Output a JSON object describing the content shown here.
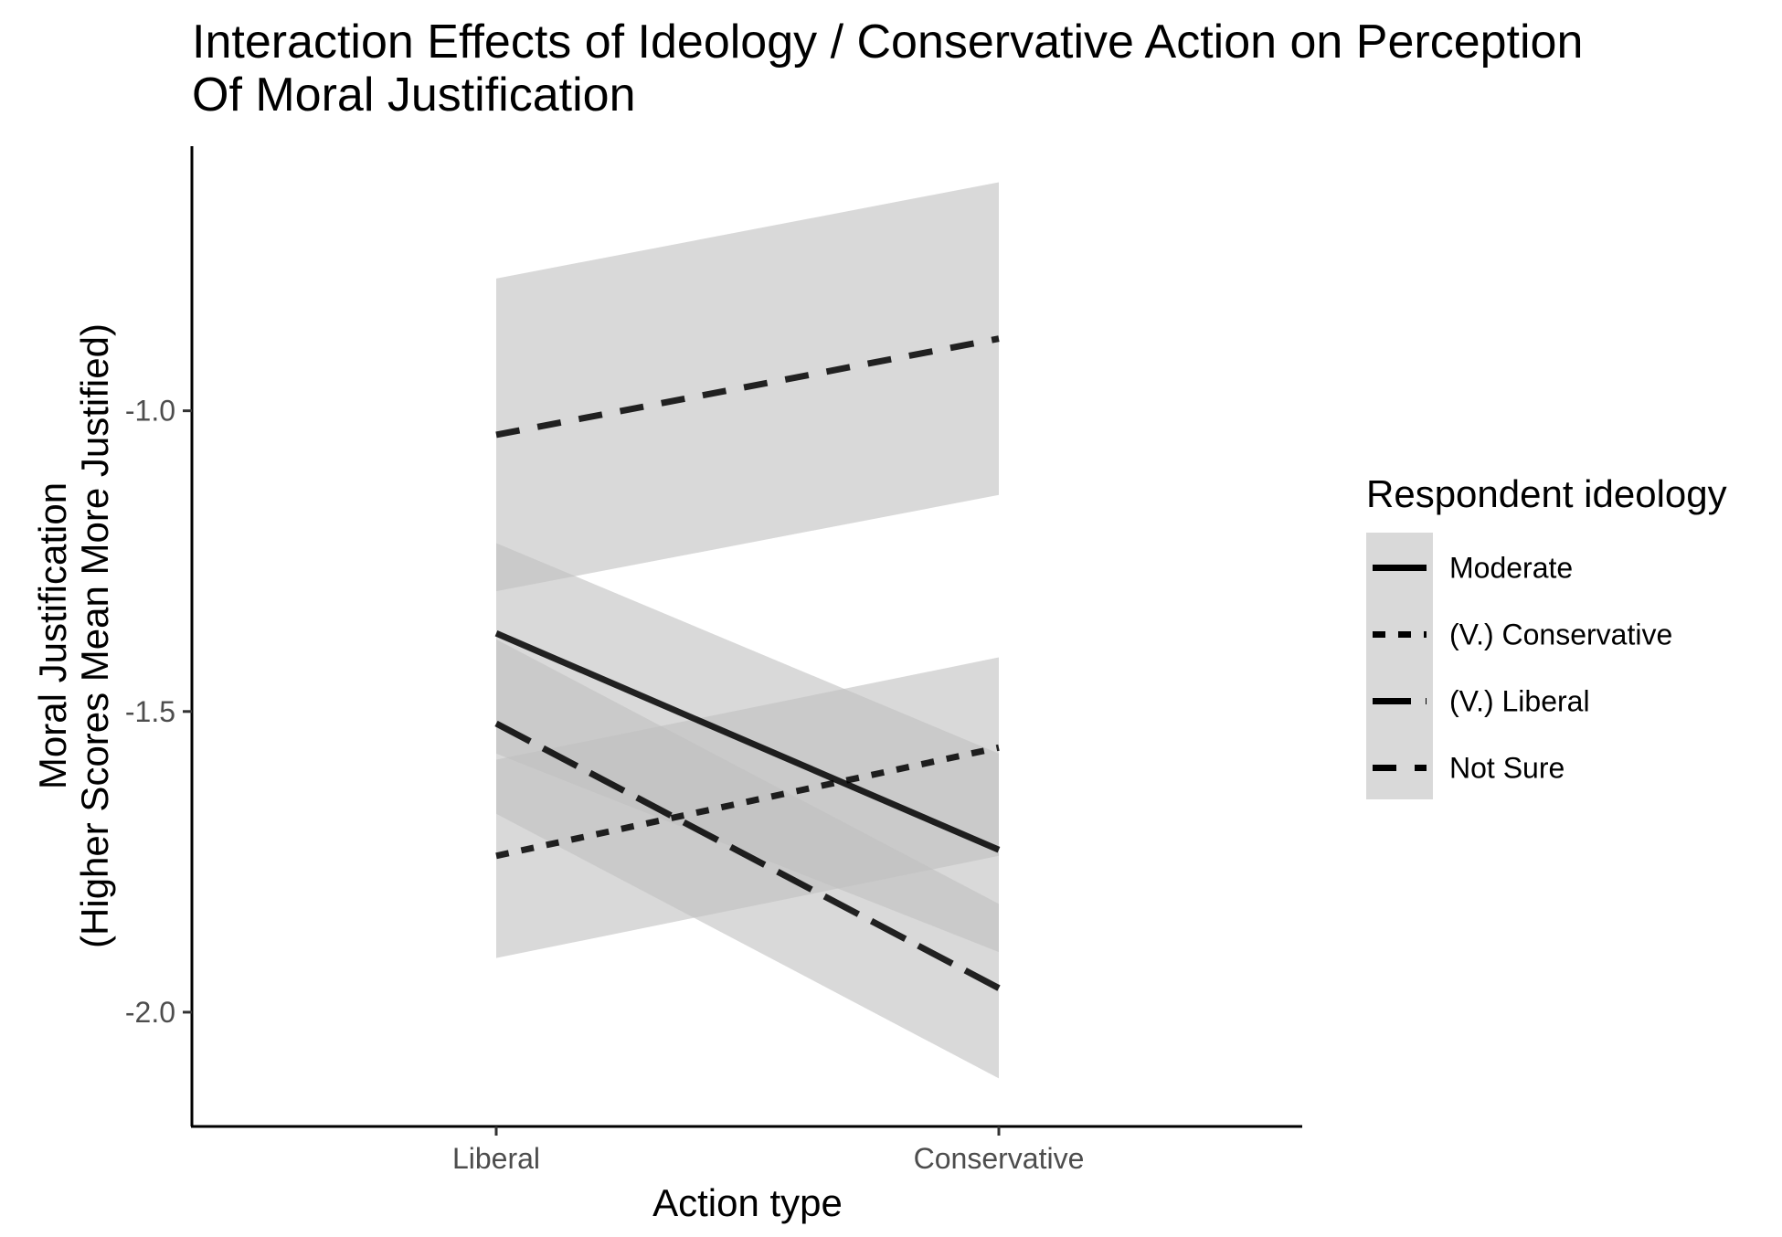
{
  "chart_data": {
    "type": "line",
    "title_lines": [
      "Interaction Effects of Ideology / Conservative Action on Perception",
      "Of Moral Justification"
    ],
    "xlabel": "Action type",
    "ylabel_lines": [
      "Moral Justification",
      "(Higher Scores Mean More Justified)"
    ],
    "categories": [
      "Liberal",
      "Conservative"
    ],
    "ylim": [
      -2.19,
      -0.56
    ],
    "yticks": [
      -2.0,
      -1.5,
      -1.0
    ],
    "ytick_labels": [
      "-2.0",
      "-1.5",
      "-1.0"
    ],
    "grid": false,
    "legend": {
      "title": "Respondent ideology",
      "position": "right"
    },
    "band_color": "#bfbfbf",
    "line_color": "#000000",
    "series": [
      {
        "name": "Moderate",
        "dash": "solid",
        "values": [
          -1.37,
          -1.73
        ],
        "lower": [
          -1.57,
          -1.9
        ],
        "upper": [
          -1.22,
          -1.57
        ]
      },
      {
        "name": "(V.) Conservative",
        "dash": "dotted",
        "values": [
          -1.74,
          -1.56
        ],
        "lower": [
          -1.91,
          -1.74
        ],
        "upper": [
          -1.58,
          -1.41
        ]
      },
      {
        "name": "(V.) Liberal",
        "dash": "longdash",
        "values": [
          -1.52,
          -1.96
        ],
        "lower": [
          -1.67,
          -2.11
        ],
        "upper": [
          -1.38,
          -1.82
        ]
      },
      {
        "name": "Not Sure",
        "dash": "dashed",
        "values": [
          -1.04,
          -0.88
        ],
        "lower": [
          -1.3,
          -1.14
        ],
        "upper": [
          -0.78,
          -0.62
        ]
      }
    ]
  }
}
